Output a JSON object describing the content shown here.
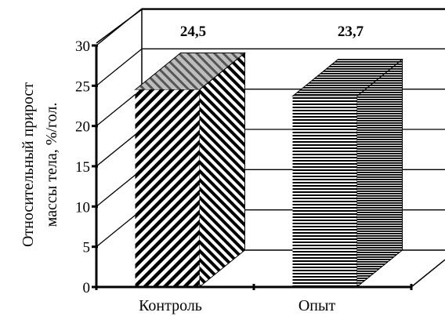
{
  "chart_data": {
    "type": "bar",
    "categories": [
      "Контроль",
      "Опыт"
    ],
    "values": [
      24.5,
      23.7
    ],
    "data_labels": [
      "24,5",
      "23,7"
    ],
    "ylabel_lines": [
      "Относительный прирост",
      "массы тела, %/гол."
    ],
    "ylim": [
      0,
      30
    ],
    "y_ticks": [
      "0",
      "5",
      "10",
      "15",
      "20",
      "25",
      "30"
    ],
    "grid": true,
    "style": "3d",
    "series": [
      {
        "name": "",
        "values": [
          24.5,
          23.7
        ]
      }
    ],
    "bar_patterns": [
      "diagonal-stripes",
      "horizontal-stripes"
    ],
    "colors": {
      "axis": "#000000",
      "bar_stripe": "#000000",
      "bar_fill": "#ffffff",
      "top_face": "#9a9a9a"
    }
  }
}
